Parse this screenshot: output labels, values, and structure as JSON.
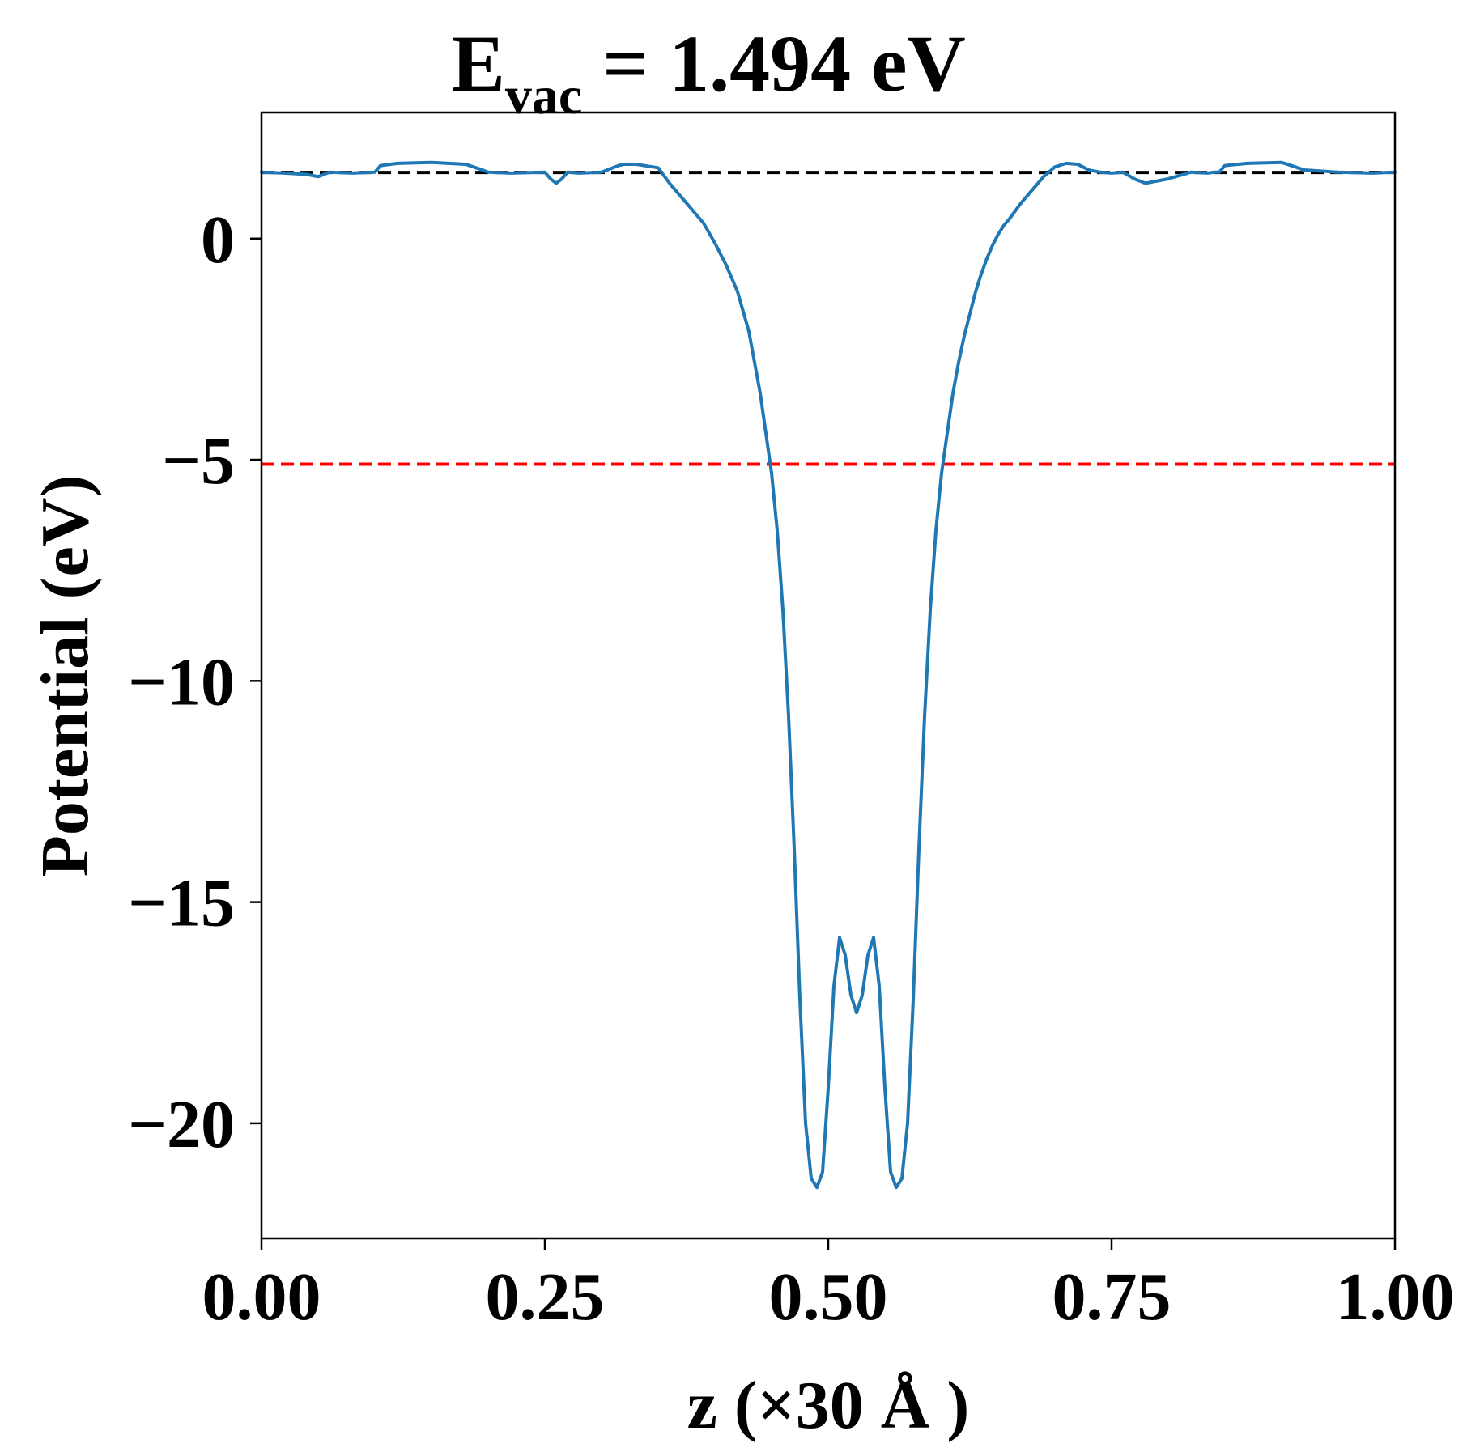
{
  "chart_data": {
    "type": "line",
    "title": {
      "main": "E",
      "subscript": "vac",
      "rest": " = 1.494 eV"
    },
    "xlabel": "z (×30 Å )",
    "ylabel": "Potential (eV)",
    "xlim": [
      0.0,
      1.0
    ],
    "ylim": [
      -22.6,
      2.85
    ],
    "xticks": [
      0.0,
      0.25,
      0.5,
      0.75,
      1.0
    ],
    "xtick_labels": [
      "0.00",
      "0.25",
      "0.50",
      "0.75",
      "1.00"
    ],
    "yticks": [
      0,
      -5,
      -10,
      -15,
      -20
    ],
    "ytick_labels": [
      "0",
      "−5",
      "−10",
      "−15",
      "−20"
    ],
    "grid": false,
    "hlines": [
      {
        "y": 1.494,
        "color": "#000000",
        "style": "dashed"
      },
      {
        "y": -5.1,
        "color": "#ff0000",
        "style": "dashed"
      }
    ],
    "series": [
      {
        "color": "#1f77b4",
        "x": [
          0.0,
          0.02,
          0.04,
          0.05,
          0.06,
          0.08,
          0.1,
          0.105,
          0.12,
          0.15,
          0.18,
          0.195,
          0.2,
          0.22,
          0.25,
          0.255,
          0.26,
          0.265,
          0.27,
          0.28,
          0.3,
          0.315,
          0.32,
          0.33,
          0.35,
          0.36,
          0.37,
          0.38,
          0.39,
          0.4,
          0.41,
          0.42,
          0.43,
          0.44,
          0.45,
          0.455,
          0.46,
          0.465,
          0.47,
          0.475,
          0.48,
          0.485,
          0.49,
          0.495,
          0.5,
          0.505,
          0.51,
          0.515,
          0.52,
          0.525,
          0.53,
          0.535,
          0.54,
          0.545,
          0.55,
          0.555,
          0.56,
          0.565,
          0.57,
          0.575,
          0.58,
          0.585,
          0.59,
          0.595,
          0.6,
          0.605,
          0.61,
          0.615,
          0.62,
          0.625,
          0.63,
          0.635,
          0.64,
          0.645,
          0.65,
          0.655,
          0.66,
          0.67,
          0.68,
          0.69,
          0.7,
          0.71,
          0.72,
          0.73,
          0.74,
          0.75,
          0.76,
          0.77,
          0.78,
          0.8,
          0.82,
          0.835,
          0.84,
          0.845,
          0.85,
          0.87,
          0.9,
          0.905,
          0.92,
          0.95,
          0.98,
          1.0
        ],
        "values": [
          1.5,
          1.48,
          1.45,
          1.4,
          1.5,
          1.48,
          1.5,
          1.65,
          1.7,
          1.72,
          1.68,
          1.55,
          1.5,
          1.48,
          1.5,
          1.35,
          1.25,
          1.35,
          1.5,
          1.48,
          1.5,
          1.65,
          1.68,
          1.68,
          1.6,
          1.25,
          0.95,
          0.65,
          0.35,
          -0.1,
          -0.6,
          -1.2,
          -2.1,
          -3.5,
          -5.3,
          -6.6,
          -8.4,
          -10.8,
          -13.8,
          -17.2,
          -20.0,
          -21.25,
          -21.45,
          -21.1,
          -19.2,
          -16.9,
          -15.8,
          -16.2,
          -17.1,
          -17.5,
          -17.1,
          -16.2,
          -15.8,
          -16.9,
          -19.2,
          -21.1,
          -21.45,
          -21.25,
          -20.0,
          -17.2,
          -13.8,
          -10.8,
          -8.4,
          -6.6,
          -5.3,
          -4.4,
          -3.5,
          -2.8,
          -2.2,
          -1.7,
          -1.2,
          -0.8,
          -0.45,
          -0.15,
          0.1,
          0.3,
          0.45,
          0.8,
          1.1,
          1.4,
          1.62,
          1.7,
          1.68,
          1.55,
          1.5,
          1.48,
          1.5,
          1.35,
          1.25,
          1.35,
          1.5,
          1.48,
          1.5,
          1.5,
          1.65,
          1.7,
          1.72,
          1.68,
          1.55,
          1.5,
          1.48,
          1.5
        ]
      }
    ]
  }
}
